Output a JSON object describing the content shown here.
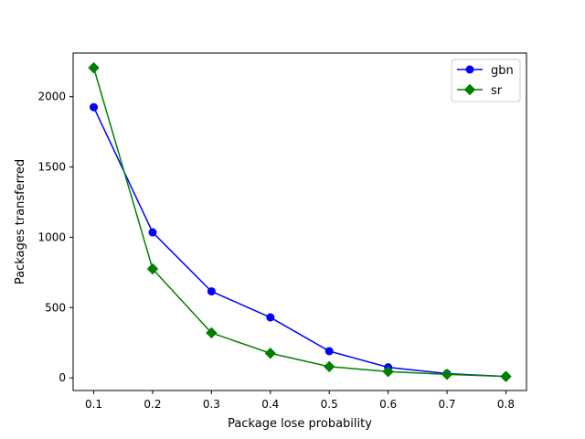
{
  "chart_data": {
    "type": "line",
    "title": "",
    "xlabel": "Package lose probability",
    "ylabel": "Packages transferred",
    "x": [
      0.1,
      0.2,
      0.3,
      0.4,
      0.5,
      0.6,
      0.7,
      0.8
    ],
    "x_ticks": [
      "0.1",
      "0.2",
      "0.3",
      "0.4",
      "0.5",
      "0.6",
      "0.7",
      "0.8"
    ],
    "y_ticks": [
      0,
      500,
      1000,
      1500,
      2000
    ],
    "y_tick_labels": [
      "0",
      "500",
      "1000",
      "1500",
      "2000"
    ],
    "xlim": [
      0.065,
      0.835
    ],
    "ylim": [
      -90,
      2310
    ],
    "grid": false,
    "legend_position": "top-right",
    "series": [
      {
        "name": "gbn",
        "color": "#0000ff",
        "marker": "circle",
        "values": [
          1925,
          1035,
          615,
          430,
          190,
          75,
          30,
          10
        ]
      },
      {
        "name": "sr",
        "color": "#008000",
        "marker": "diamond",
        "values": [
          2205,
          775,
          320,
          175,
          80,
          45,
          25,
          10
        ]
      }
    ]
  }
}
